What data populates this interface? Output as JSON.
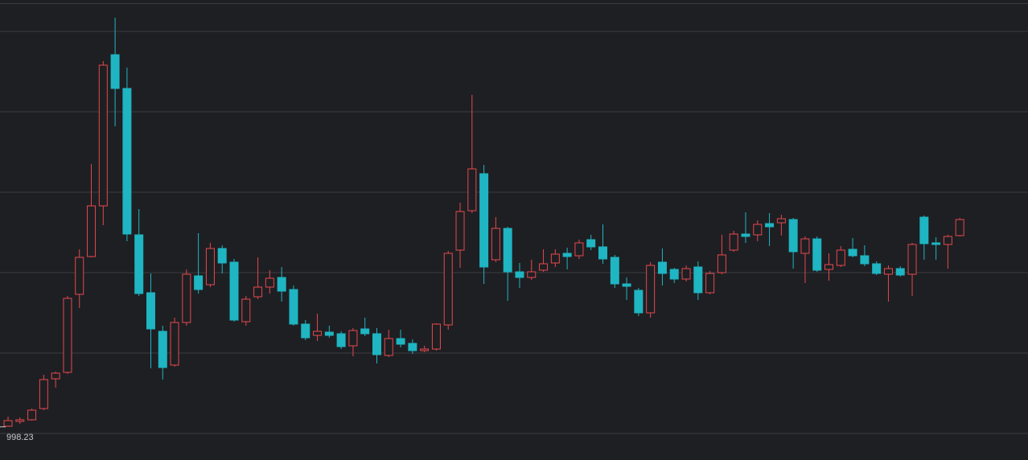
{
  "chart_data": {
    "type": "candlestick",
    "up_color": "#e5484d",
    "down_color": "#1fb5c2",
    "grid": true,
    "grid_color": "#3a3c42",
    "background": "#1e1f23",
    "ylim": [
      957,
      1529
    ],
    "yticks": [
      990,
      1090,
      1190,
      1290,
      1390,
      1490
    ],
    "low_marker": 998.23,
    "open": [
      999,
      1005,
      1007,
      1021,
      1058,
      1066,
      1163,
      1210,
      1273,
      1461,
      1419,
      1237,
      1165,
      1117,
      1075,
      1128,
      1186,
      1175,
      1220,
      1203,
      1129,
      1160,
      1172,
      1184,
      1169,
      1126,
      1112,
      1116,
      1114,
      1099,
      1120,
      1114,
      1087,
      1108,
      1102,
      1093,
      1095,
      1125,
      1218,
      1267,
      1313,
      1206,
      1245,
      1191,
      1184,
      1193,
      1202,
      1214,
      1211,
      1231,
      1222,
      1209,
      1176,
      1168,
      1140,
      1203,
      1194,
      1182,
      1197,
      1165,
      1190,
      1218,
      1238,
      1237,
      1251,
      1252,
      1256,
      1214,
      1232,
      1194,
      1199,
      1219,
      1211,
      1201,
      1188,
      1195,
      1188,
      1259,
      1227,
      1225,
      1236
    ],
    "high": [
      1011,
      1010,
      1021,
      1063,
      1067,
      1161,
      1219,
      1325,
      1453,
      1507,
      1445,
      1269,
      1189,
      1124,
      1134,
      1194,
      1239,
      1227,
      1224,
      1207,
      1161,
      1209,
      1193,
      1197,
      1174,
      1131,
      1139,
      1124,
      1117,
      1121,
      1134,
      1121,
      1119,
      1119,
      1107,
      1099,
      1127,
      1217,
      1277,
      1411,
      1324,
      1259,
      1247,
      1202,
      1206,
      1219,
      1219,
      1221,
      1231,
      1237,
      1250,
      1212,
      1184,
      1171,
      1203,
      1220,
      1196,
      1199,
      1204,
      1192,
      1237,
      1242,
      1265,
      1255,
      1264,
      1262,
      1258,
      1235,
      1235,
      1214,
      1223,
      1233,
      1224,
      1204,
      1199,
      1198,
      1227,
      1261,
      1234,
      1237,
      1258
    ],
    "low": [
      998.23,
      1002,
      1006,
      1019,
      1047,
      1064,
      1146,
      1209,
      1249,
      1372,
      1229,
      1161,
      1071,
      1057,
      1073,
      1124,
      1164,
      1172,
      1189,
      1129,
      1124,
      1157,
      1164,
      1154,
      1124,
      1106,
      1105,
      1109,
      1095,
      1086,
      1111,
      1077,
      1085,
      1097,
      1089,
      1091,
      1093,
      1119,
      1196,
      1264,
      1176,
      1203,
      1155,
      1171,
      1181,
      1191,
      1197,
      1194,
      1207,
      1218,
      1201,
      1171,
      1156,
      1136,
      1134,
      1174,
      1177,
      1179,
      1156,
      1163,
      1188,
      1216,
      1227,
      1229,
      1223,
      1236,
      1195,
      1177,
      1191,
      1180,
      1197,
      1209,
      1198,
      1187,
      1154,
      1185,
      1161,
      1206,
      1206,
      1195,
      1235
    ],
    "close": [
      1006,
      1007,
      1019,
      1057,
      1065,
      1158,
      1209,
      1273,
      1448,
      1419,
      1238,
      1164,
      1120,
      1072,
      1128,
      1188,
      1169,
      1220,
      1202,
      1131,
      1157,
      1172,
      1183,
      1167,
      1126,
      1109,
      1117,
      1112,
      1098,
      1118,
      1114,
      1088,
      1108,
      1101,
      1093,
      1095,
      1126,
      1214,
      1266,
      1319,
      1197,
      1245,
      1191,
      1184,
      1191,
      1201,
      1213,
      1210,
      1227,
      1222,
      1207,
      1176,
      1173,
      1140,
      1199,
      1189,
      1182,
      1195,
      1165,
      1189,
      1212,
      1238,
      1235,
      1250,
      1247,
      1257,
      1216,
      1232,
      1193,
      1200,
      1218,
      1211,
      1201,
      1189,
      1195,
      1187,
      1225,
      1226,
      1225,
      1235,
      1256
    ]
  }
}
